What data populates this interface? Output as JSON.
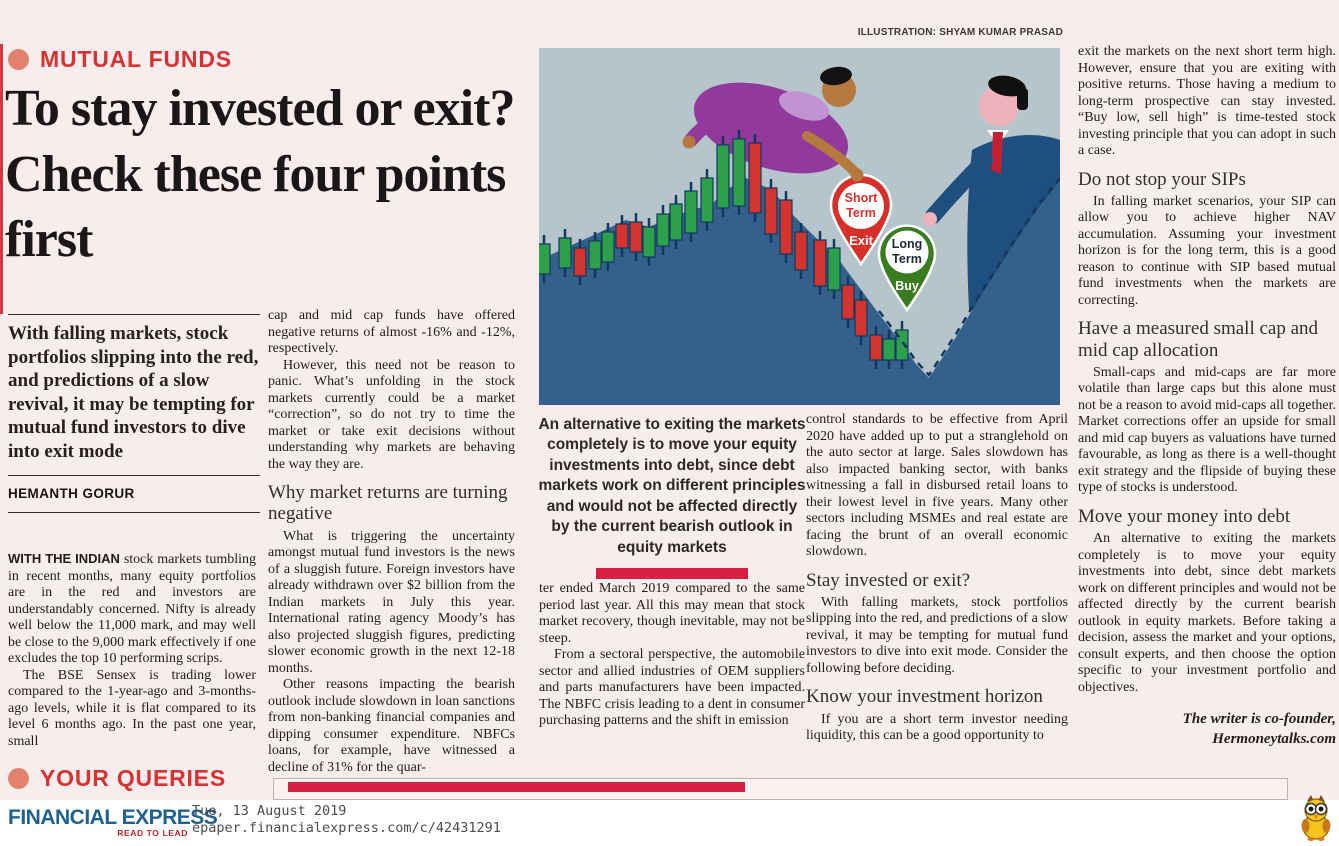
{
  "masthead": {
    "section_label": "MUTUAL FUNDS",
    "headline": "To stay invested or exit? Check these four points first",
    "standfirst": "With falling markets, stock portfolios slipping into the red, and predictions of a slow revival, it may be tempting for mutual fund investors to dive into exit mode",
    "byline": "HEMANTH GORUR",
    "illustration_credit": "ILLUSTRATION: SHYAM KUMAR PRASAD"
  },
  "article": {
    "col1": {
      "lead_in": "WITH THE INDIAN",
      "p1_rest": " stock markets tumbling in recent months, many equity portfolios are in the red and investors are understandably concerned. Nifty is already well below the 11,000 mark, and may well be close to the 9,000 mark effectively if one excludes the top 10 performing scrips.",
      "p2": "The BSE Sensex is trading lower compared to the 1-year-ago and 3-months-ago levels, while it is flat compared to its level 6 months ago. In the past one year, small"
    },
    "col2": {
      "p1": "cap and mid cap funds have offered negative returns of almost -16% and -12%, respectively.",
      "p2": "However, this need not be reason to panic. What’s unfolding in the stock markets currently could be a market “correction”, so do not try to time the market or take exit decisions without understanding why markets are behaving the way they are.",
      "heading": "Why market returns are turning negative",
      "p3": "What is triggering the uncertainty amongst mutual fund investors is the news of a sluggish future. Foreign investors have already withdrawn over $2 billion from the Indian markets in July this year. International rating agency Moody’s has also projected sluggish figures, predicting slower economic growth in the next 12-18 months.",
      "p4": "Other reasons impacting the bearish outlook include slowdown in loan sanctions from non-banking financial companies and dipping consumer expenditure. NBFCs loans, for example, have witnessed a decline of 31% for the quar-"
    },
    "caption": "An alternative to exiting the markets completely is to move your equity investments into debt, since debt markets work on different principles and would not be affected directly by the current bearish outlook in equity markets",
    "col3": {
      "p1": "ter ended March 2019 compared to the same period last year. All this may mean that stock market recovery, though inevitable, may not be steep.",
      "p2": "From a sectoral perspective, the automobile sector and allied industries of OEM suppliers and parts manufacturers have been impacted. The NBFC crisis leading to a dent in consumer purchasing patterns and the shift in emission"
    },
    "col4": {
      "p1": "control standards to be effective from April 2020 have added up to put a stranglehold on the auto sector at large. Sales slowdown has also impacted banking sector, with banks witnessing a fall in disbursed retail loans to their lowest level in five years. Many other sectors including MSMEs and real estate are facing the brunt of an overall economic slowdown.",
      "heading1": "Stay invested or exit?",
      "p2": "With falling markets, stock portfolios slipping into the red, and predictions of a slow revival, it may be tempting for mutual fund investors to dive into exit mode. Consider the following before deciding.",
      "heading2": "Know your investment horizon",
      "p3": "If you are a short term investor needing liquidity, this can be a good opportunity to"
    },
    "col5": {
      "p1": "exit the markets on the next short term high. However, ensure that you are exiting with positive returns. Those having a medium to long-term prospective can stay invested. “Buy low, sell high” is time-tested stock investing principle that you can adopt in such a case.",
      "heading1": "Do not stop your SIPs",
      "p2": "In falling market scenarios, your SIP can allow you to achieve higher NAV accumulation. Assuming your investment horizon is for the long term, this is a good reason to continue with SIP based mutual fund investments when the markets are correcting.",
      "heading2": "Have a measured small cap and mid cap allocation",
      "p3": "Small-caps and mid-caps are far more volatile than large caps but this alone must not be a reason to avoid mid-caps all together. Market corrections offer an upside for small and mid cap buyers as valuations have turned favourable, as long as there is a well-thought exit strategy and the flipside of buying these type of stocks is understood.",
      "heading3": "Move your money into debt",
      "p4": "An alternative to exiting the markets completely is to move your equity investments into debt, since debt markets work on different principles and would not be affected directly by the current bearish outlook in equity markets. Before taking a decision, assess the market and your options, consult experts, and then choose the option specific to your investment portfolio and objectives.",
      "signoff1": "The writer is co-founder,",
      "signoff2": "Hermoneytalks.com"
    }
  },
  "illustration": {
    "pin_red": {
      "line1": "Short",
      "line2": "Term",
      "line3": "Exit"
    },
    "pin_green": {
      "line1": "Long",
      "line2": "Term",
      "line3": "Buy"
    }
  },
  "queries_section": {
    "label": "YOUR QUERIES"
  },
  "footer": {
    "brand": "FINANCIAL EXPRESS",
    "tagline": "READ TO LEAD",
    "date": "Tue, 13 August 2019",
    "url": "epaper.financialexpress.com/c/42431291"
  },
  "colors": {
    "page_background": "#f8edec",
    "accent_red": "#d73232",
    "bullet_salmon": "#e1826d",
    "bar_crimson": "#d62045",
    "brand_blue": "#20618f",
    "tagline_red": "#c8242c"
  }
}
